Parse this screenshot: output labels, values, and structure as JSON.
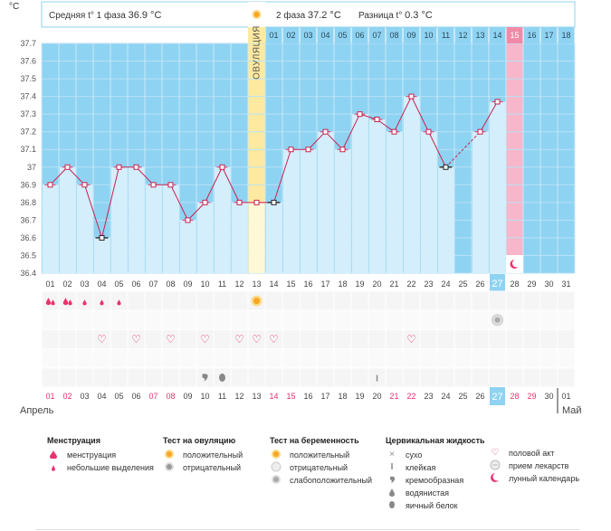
{
  "chart_data": {
    "type": "bar",
    "ylabel": "°C",
    "ylim": [
      36.4,
      37.7
    ],
    "yticks": [
      "36.4",
      "36.5",
      "36.6",
      "36.7",
      "36.8",
      "36.9",
      "37",
      "37.1",
      "37.2",
      "37.3",
      "37.4",
      "37.5",
      "37.6",
      "37.7"
    ],
    "header": {
      "phase1_label": "Средняя t° 1 фаза",
      "phase1_value": "36.9 °C",
      "phase2_label": "2 фаза",
      "phase2_value": "37.2 °C",
      "diff_label": "Разница t°",
      "diff_value": "0.3 °C"
    },
    "ovulation_label": "ОВУЛЯЦИЯ",
    "cycle_days": [
      "01",
      "02",
      "03",
      "04",
      "05",
      "06",
      "07",
      "08",
      "09",
      "10",
      "11",
      "12",
      "13",
      "14",
      "15",
      "16",
      "17",
      "18"
    ],
    "dates": [
      "01",
      "02",
      "03",
      "04",
      "05",
      "06",
      "07",
      "08",
      "09",
      "10",
      "11",
      "12",
      "13",
      "14",
      "15",
      "16",
      "17",
      "18",
      "19",
      "20",
      "21",
      "22",
      "23",
      "24",
      "25",
      "26",
      "27",
      "28",
      "29",
      "30",
      "31"
    ],
    "values": [
      36.9,
      37.0,
      36.9,
      36.6,
      37.0,
      37.0,
      36.9,
      36.9,
      36.7,
      36.8,
      37.0,
      36.8,
      36.8,
      36.8,
      37.1,
      37.1,
      37.2,
      37.1,
      37.3,
      37.27,
      37.2,
      37.4,
      37.2,
      37.0,
      null,
      37.2,
      37.37,
      null,
      null,
      null,
      null
    ],
    "today_index": 26,
    "menstruation": [
      1,
      2,
      1,
      1,
      1,
      0,
      0,
      0,
      0,
      0,
      0,
      0,
      0,
      0,
      0,
      0,
      0,
      0,
      0,
      0,
      0,
      0,
      0,
      0,
      0,
      0,
      0,
      0,
      0,
      0,
      0
    ],
    "ovulation_test_index": 12,
    "pregnancy_test_index": 26,
    "sex_days": [
      3,
      5,
      7,
      9,
      11,
      12,
      13,
      21
    ],
    "fluid": [
      {
        "index": 9,
        "kind": "cream"
      },
      {
        "index": 10,
        "kind": "egg"
      },
      {
        "index": 19,
        "kind": "sticky"
      }
    ],
    "bottom_dates": [
      "01",
      "02",
      "03",
      "04",
      "05",
      "06",
      "07",
      "08",
      "09",
      "10",
      "11",
      "12",
      "13",
      "14",
      "15",
      "16",
      "17",
      "18",
      "19",
      "20",
      "21",
      "22",
      "23",
      "24",
      "25",
      "26",
      "27",
      "28",
      "29",
      "30"
    ],
    "bottom_last": "01",
    "red_bottom": [
      0,
      1,
      6,
      7,
      13,
      14,
      20,
      21,
      27,
      28
    ],
    "month_left": "Апрель",
    "month_right": "Май"
  },
  "legend": {
    "menstruation": {
      "title": "Менструация",
      "items": [
        "менструация",
        "небольшие выделения"
      ]
    },
    "ovulation_test": {
      "title": "Тест на овуляцию",
      "items": [
        "положительный",
        "отрицательный"
      ]
    },
    "pregnancy_test": {
      "title": "Тест на беременность",
      "items": [
        "положительный",
        "отрицательный",
        "слабоположительный"
      ]
    },
    "cervical": {
      "title": "Цервикальная жидкость",
      "items": [
        "сухо",
        "клейкая",
        "кремообразная",
        "водянистая",
        "яичный белок"
      ]
    },
    "other": {
      "items": [
        "половой акт",
        "прием лекарств",
        "лунный календарь"
      ]
    }
  }
}
